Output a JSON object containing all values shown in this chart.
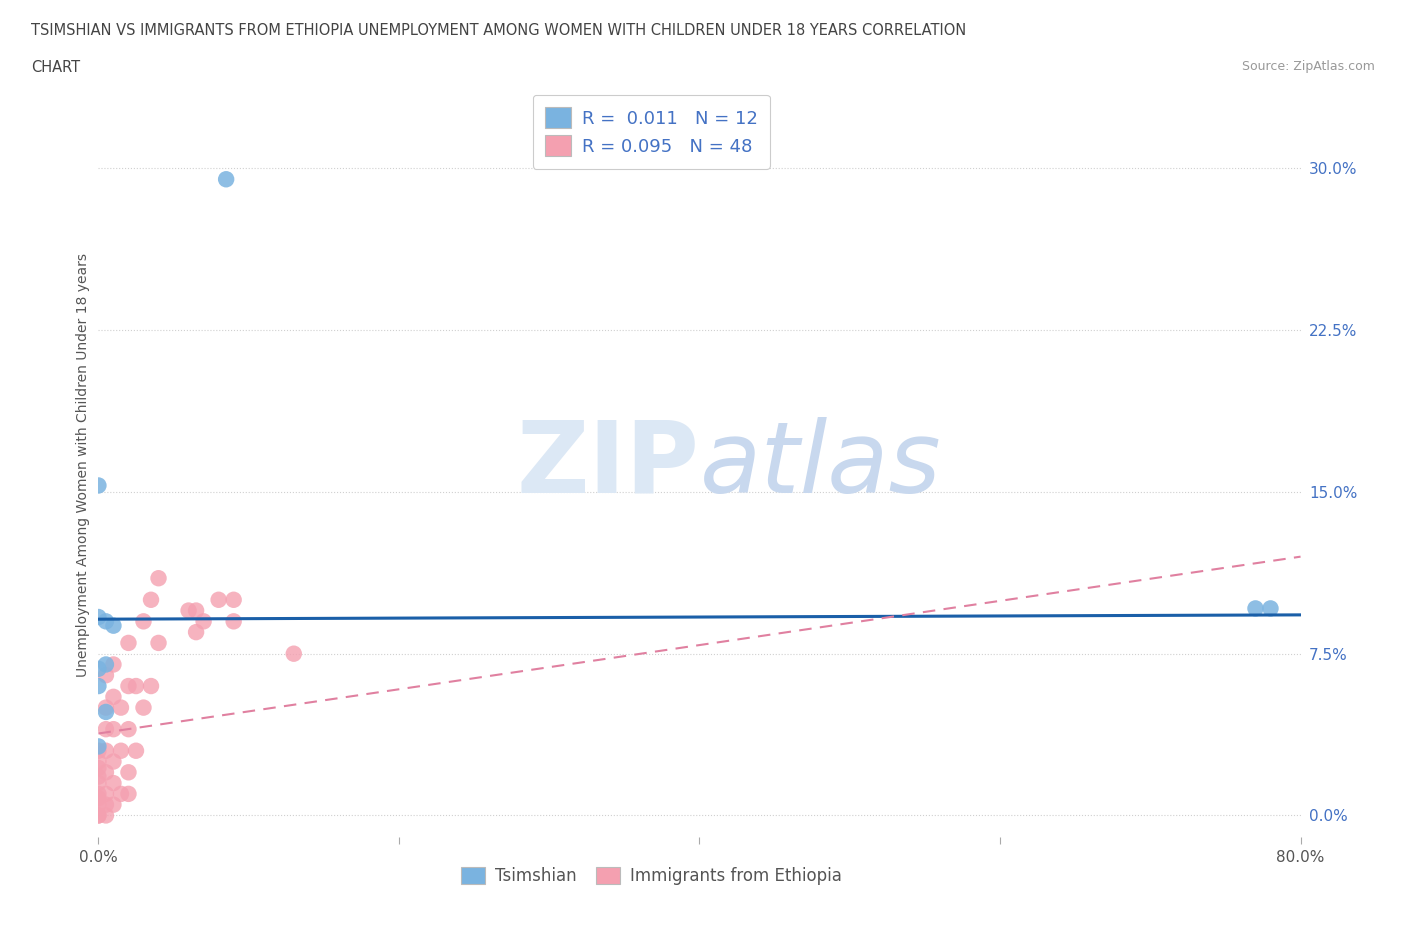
{
  "title_line1": "TSIMSHIAN VS IMMIGRANTS FROM ETHIOPIA UNEMPLOYMENT AMONG WOMEN WITH CHILDREN UNDER 18 YEARS CORRELATION",
  "title_line2": "CHART",
  "source": "Source: ZipAtlas.com",
  "ylabel": "Unemployment Among Women with Children Under 18 years",
  "xlim": [
    0.0,
    0.8
  ],
  "ylim": [
    -0.01,
    0.335
  ],
  "yticks": [
    0.0,
    0.075,
    0.15,
    0.225,
    0.3
  ],
  "ytick_labels": [
    "0.0%",
    "7.5%",
    "15.0%",
    "22.5%",
    "30.0%"
  ],
  "xticks": [
    0.0,
    0.2,
    0.4,
    0.6,
    0.8
  ],
  "xtick_labels": [
    "0.0%",
    "",
    "",
    "",
    "80.0%"
  ],
  "tsimshian_color": "#7ab3e0",
  "ethiopia_color": "#f4a0b0",
  "tsimshian_scatter": {
    "x": [
      0.085,
      0.0,
      0.77,
      0.78,
      0.0,
      0.005,
      0.01,
      0.005,
      0.0,
      0.0,
      0.005,
      0.0
    ],
    "y": [
      0.295,
      0.153,
      0.096,
      0.096,
      0.092,
      0.09,
      0.088,
      0.07,
      0.068,
      0.06,
      0.048,
      0.032
    ]
  },
  "ethiopia_scatter": {
    "x": [
      0.0,
      0.0,
      0.0,
      0.0,
      0.0,
      0.0,
      0.0,
      0.0,
      0.0,
      0.0,
      0.005,
      0.005,
      0.005,
      0.005,
      0.005,
      0.005,
      0.005,
      0.005,
      0.01,
      0.01,
      0.01,
      0.01,
      0.01,
      0.01,
      0.015,
      0.015,
      0.015,
      0.02,
      0.02,
      0.02,
      0.02,
      0.02,
      0.025,
      0.025,
      0.03,
      0.03,
      0.035,
      0.035,
      0.04,
      0.04,
      0.06,
      0.065,
      0.065,
      0.07,
      0.08,
      0.09,
      0.09,
      0.13
    ],
    "y": [
      0.0,
      0.0,
      0.005,
      0.008,
      0.01,
      0.015,
      0.018,
      0.022,
      0.025,
      0.03,
      0.0,
      0.005,
      0.01,
      0.02,
      0.03,
      0.04,
      0.05,
      0.065,
      0.005,
      0.015,
      0.025,
      0.04,
      0.055,
      0.07,
      0.01,
      0.03,
      0.05,
      0.01,
      0.02,
      0.04,
      0.06,
      0.08,
      0.03,
      0.06,
      0.05,
      0.09,
      0.06,
      0.1,
      0.08,
      0.11,
      0.095,
      0.085,
      0.095,
      0.09,
      0.1,
      0.09,
      0.1,
      0.075
    ]
  },
  "tsimshian_R": 0.011,
  "tsimshian_N": 12,
  "ethiopia_R": 0.095,
  "ethiopia_N": 48,
  "tsimshian_trend_x": [
    0.0,
    0.8
  ],
  "tsimshian_trend_y": [
    0.091,
    0.093
  ],
  "ethiopia_trend_x": [
    0.0,
    0.8
  ],
  "ethiopia_trend_y": [
    0.038,
    0.12
  ],
  "watermark": "ZIPatlas",
  "watermark_color": "#dce8f5",
  "background_color": "#ffffff",
  "grid_color": "#d0d0d0"
}
